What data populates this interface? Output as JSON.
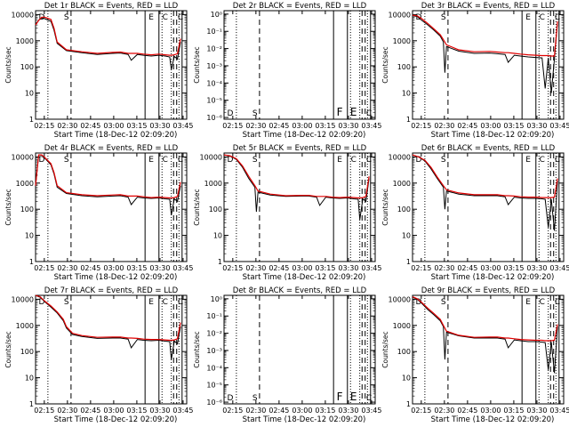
{
  "colors": {
    "events": "#000000",
    "lld": "#e00000",
    "axis": "#000000"
  },
  "chart_data": [
    {
      "type": "line",
      "title": "Det 1r BLACK = Events, RED = LLD",
      "xlabel": "Start Time (18-Dec-12 02:09:20)",
      "ylabel": "Counts/sec",
      "x_ticks": [
        "02:15",
        "02:30",
        "02:45",
        "03:00",
        "03:15",
        "03:30",
        "03:45"
      ],
      "y_ticks": [
        "1",
        "10",
        "100",
        "1000",
        "10000"
      ],
      "xlim_minutes": [
        0,
        98
      ],
      "ylim_decades": [
        0,
        4.15
      ],
      "y_scale": "log",
      "markers": [
        "D",
        "S",
        "E",
        "C",
        "C"
      ],
      "series": [
        {
          "name": "Events",
          "x": [
            0,
            2,
            4,
            6,
            10,
            12,
            14,
            20,
            30,
            40,
            50,
            55,
            60,
            62,
            66,
            70,
            75,
            80,
            84,
            87,
            88,
            90,
            92,
            94
          ],
          "y": [
            4000,
            6000,
            7500,
            7000,
            5500,
            2500,
            800,
            420,
            350,
            300,
            330,
            340,
            300,
            180,
            300,
            280,
            260,
            280,
            260,
            240,
            80,
            250,
            200,
            900
          ]
        },
        {
          "name": "LLD",
          "x": [
            0,
            2,
            4,
            6,
            10,
            12,
            14,
            20,
            30,
            40,
            50,
            55,
            60,
            62,
            66,
            70,
            75,
            80,
            84,
            87,
            88,
            90,
            92,
            94
          ],
          "y": [
            4000,
            6000,
            8000,
            8000,
            6500,
            3000,
            900,
            450,
            380,
            330,
            360,
            370,
            330,
            330,
            330,
            310,
            290,
            310,
            290,
            280,
            280,
            290,
            320,
            1200
          ]
        }
      ]
    },
    {
      "type": "line",
      "title": "Det 2r BLACK = Events, RED = LLD",
      "xlabel": "Start Time (18-Dec-12 02:09:20)",
      "ylabel": "Counts/sec",
      "x_ticks": [
        "02:15",
        "02:30",
        "02:45",
        "03:00",
        "03:15",
        "03:30",
        "03:45"
      ],
      "y_ticks": [
        "10⁻⁶",
        "10⁻⁵",
        "10⁻⁴",
        "10⁻³",
        "10⁻²",
        "10⁻¹",
        "10⁰"
      ],
      "xlim_minutes": [
        0,
        98
      ],
      "ylim_decades": [
        -6.1,
        0.2
      ],
      "y_scale": "log",
      "markers": [
        "D",
        "S",
        "F",
        "E",
        "C"
      ],
      "series": []
    },
    {
      "type": "line",
      "title": "Det 3r BLACK = Events, RED = LLD",
      "xlabel": "Start Time (18-Dec-12 02:09:20)",
      "ylabel": "Counts/sec",
      "x_ticks": [
        "02:15",
        "02:30",
        "02:45",
        "03:00",
        "03:15",
        "03:30",
        "03:45"
      ],
      "y_ticks": [
        "1",
        "10",
        "100",
        "1000",
        "10000"
      ],
      "xlim_minutes": [
        0,
        98
      ],
      "ylim_decades": [
        0,
        4.15
      ],
      "y_scale": "log",
      "markers": [
        "D",
        "S",
        "E",
        "C",
        "C"
      ],
      "series": [
        {
          "name": "Events",
          "x": [
            0,
            3,
            6,
            10,
            14,
            18,
            20,
            21,
            22,
            30,
            40,
            50,
            55,
            60,
            62,
            66,
            70,
            75,
            80,
            84,
            86,
            88,
            90,
            92,
            94
          ],
          "y": [
            9000,
            8500,
            6000,
            4000,
            2500,
            1500,
            900,
            60,
            600,
            400,
            330,
            340,
            320,
            300,
            150,
            280,
            260,
            240,
            230,
            220,
            15,
            220,
            10,
            200,
            5000
          ]
        },
        {
          "name": "LLD",
          "x": [
            0,
            3,
            6,
            10,
            14,
            18,
            20,
            22,
            30,
            40,
            50,
            55,
            60,
            62,
            66,
            70,
            75,
            80,
            84,
            86,
            88,
            90,
            92,
            94
          ],
          "y": [
            9500,
            9000,
            7000,
            4500,
            2800,
            1700,
            1100,
            700,
            450,
            380,
            390,
            370,
            350,
            350,
            330,
            310,
            290,
            280,
            270,
            270,
            270,
            260,
            260,
            5500
          ]
        }
      ]
    },
    {
      "type": "line",
      "title": "Det 4r BLACK = Events, RED = LLD",
      "xlabel": "Start Time (18-Dec-12 02:09:20)",
      "ylabel": "Counts/sec",
      "x_ticks": [
        "02:15",
        "02:30",
        "02:45",
        "03:00",
        "03:15",
        "03:30",
        "03:45"
      ],
      "y_ticks": [
        "1",
        "10",
        "100",
        "1000",
        "10000"
      ],
      "xlim_minutes": [
        0,
        98
      ],
      "ylim_decades": [
        0,
        4.15
      ],
      "y_scale": "log",
      "markers": [
        "D",
        "S",
        "E",
        "C",
        "C"
      ],
      "series": [
        {
          "name": "Events",
          "x": [
            0,
            2,
            4,
            6,
            10,
            12,
            14,
            20,
            30,
            40,
            50,
            55,
            60,
            62,
            66,
            70,
            75,
            80,
            84,
            87,
            88,
            90,
            92,
            94
          ],
          "y": [
            800,
            12000,
            12000,
            9000,
            5000,
            2200,
            700,
            400,
            330,
            300,
            320,
            330,
            290,
            150,
            290,
            270,
            260,
            270,
            250,
            240,
            60,
            250,
            200,
            800
          ]
        },
        {
          "name": "LLD",
          "x": [
            0,
            2,
            4,
            6,
            10,
            12,
            14,
            20,
            30,
            40,
            50,
            55,
            60,
            62,
            66,
            70,
            75,
            80,
            84,
            87,
            88,
            90,
            92,
            94
          ],
          "y": [
            800,
            12000,
            12000,
            9500,
            5500,
            2500,
            800,
            430,
            360,
            330,
            350,
            360,
            320,
            320,
            320,
            300,
            280,
            290,
            280,
            270,
            270,
            280,
            310,
            1100
          ]
        }
      ]
    },
    {
      "type": "line",
      "title": "Det 5r BLACK = Events, RED = LLD",
      "xlabel": "Start Time (18-Dec-12 02:09:20)",
      "ylabel": "Counts/sec",
      "x_ticks": [
        "02:15",
        "02:30",
        "02:45",
        "03:00",
        "03:15",
        "03:30",
        "03:45"
      ],
      "y_ticks": [
        "1",
        "10",
        "100",
        "1000",
        "10000"
      ],
      "xlim_minutes": [
        0,
        98
      ],
      "ylim_decades": [
        0,
        4.15
      ],
      "y_scale": "log",
      "markers": [
        "D",
        "S",
        "E",
        "C",
        "C"
      ],
      "series": [
        {
          "name": "Events",
          "x": [
            0,
            4,
            8,
            12,
            16,
            20,
            21,
            22,
            30,
            40,
            50,
            55,
            60,
            62,
            66,
            70,
            75,
            80,
            84,
            87,
            88,
            90,
            92,
            94
          ],
          "y": [
            12000,
            11000,
            8000,
            4000,
            1500,
            700,
            80,
            450,
            350,
            310,
            320,
            320,
            290,
            140,
            290,
            270,
            260,
            270,
            250,
            240,
            40,
            250,
            200,
            1500
          ]
        },
        {
          "name": "LLD",
          "x": [
            0,
            4,
            8,
            12,
            16,
            20,
            22,
            30,
            40,
            50,
            55,
            60,
            62,
            66,
            70,
            75,
            80,
            84,
            87,
            88,
            90,
            92,
            94
          ],
          "y": [
            12000,
            11000,
            8500,
            4500,
            1800,
            800,
            500,
            380,
            330,
            340,
            340,
            310,
            310,
            310,
            290,
            280,
            290,
            280,
            270,
            270,
            280,
            310,
            1800
          ]
        }
      ]
    },
    {
      "type": "line",
      "title": "Det 6r BLACK = Events, RED = LLD",
      "xlabel": "Start Time (18-Dec-12 02:09:20)",
      "ylabel": "Counts/sec",
      "x_ticks": [
        "02:15",
        "02:30",
        "02:45",
        "03:00",
        "03:15",
        "03:30",
        "03:45"
      ],
      "y_ticks": [
        "1",
        "10",
        "100",
        "1000",
        "10000"
      ],
      "xlim_minutes": [
        0,
        98
      ],
      "ylim_decades": [
        0,
        4.15
      ],
      "y_scale": "log",
      "markers": [
        "D",
        "S",
        "E",
        "C",
        "C"
      ],
      "series": [
        {
          "name": "Events",
          "x": [
            0,
            4,
            8,
            12,
            16,
            20,
            21,
            22,
            30,
            40,
            50,
            55,
            60,
            62,
            66,
            70,
            75,
            80,
            84,
            86,
            88,
            90,
            92,
            94
          ],
          "y": [
            12000,
            10000,
            7000,
            3500,
            1500,
            700,
            100,
            500,
            380,
            330,
            330,
            330,
            300,
            150,
            290,
            270,
            260,
            260,
            250,
            240,
            20,
            240,
            15,
            1200
          ]
        },
        {
          "name": "LLD",
          "x": [
            0,
            4,
            8,
            12,
            16,
            20,
            22,
            30,
            40,
            50,
            55,
            60,
            62,
            66,
            70,
            75,
            80,
            84,
            86,
            88,
            90,
            92,
            94
          ],
          "y": [
            12000,
            10000,
            7500,
            4000,
            1700,
            800,
            550,
            420,
            360,
            360,
            360,
            330,
            330,
            320,
            300,
            290,
            290,
            280,
            280,
            280,
            280,
            290,
            1500
          ]
        }
      ]
    },
    {
      "type": "line",
      "title": "Det 7r BLACK = Events, RED = LLD",
      "xlabel": "Start Time (18-Dec-12 02:09:20)",
      "ylabel": "Counts/sec",
      "x_ticks": [
        "02:15",
        "02:30",
        "02:45",
        "03:00",
        "03:15",
        "03:30",
        "03:45"
      ],
      "y_ticks": [
        "1",
        "10",
        "100",
        "1000",
        "10000"
      ],
      "xlim_minutes": [
        0,
        98
      ],
      "ylim_decades": [
        0,
        4.15
      ],
      "y_scale": "log",
      "markers": [
        "D",
        "S",
        "E",
        "C",
        "C"
      ],
      "series": [
        {
          "name": "Events",
          "x": [
            0,
            3,
            6,
            10,
            14,
            18,
            20,
            24,
            30,
            40,
            50,
            55,
            60,
            62,
            66,
            70,
            75,
            80,
            84,
            87,
            88,
            90,
            92,
            94
          ],
          "y": [
            14000,
            12000,
            8000,
            5000,
            3000,
            1500,
            800,
            450,
            380,
            320,
            330,
            330,
            300,
            140,
            290,
            270,
            260,
            270,
            250,
            240,
            50,
            250,
            200,
            900
          ]
        },
        {
          "name": "LLD",
          "x": [
            0,
            3,
            6,
            10,
            14,
            18,
            20,
            24,
            30,
            40,
            50,
            55,
            60,
            62,
            66,
            70,
            75,
            80,
            84,
            87,
            88,
            90,
            92,
            94
          ],
          "y": [
            14000,
            12500,
            8500,
            5500,
            3300,
            1700,
            900,
            500,
            410,
            350,
            360,
            360,
            330,
            330,
            320,
            300,
            290,
            290,
            280,
            270,
            270,
            280,
            310,
            1300
          ]
        }
      ]
    },
    {
      "type": "line",
      "title": "Det 8r BLACK = Events, RED = LLD",
      "xlabel": "Start Time (18-Dec-12 02:09:20)",
      "ylabel": "Counts/sec",
      "x_ticks": [
        "02:15",
        "02:30",
        "02:45",
        "03:00",
        "03:15",
        "03:30",
        "03:45"
      ],
      "y_ticks": [
        "10⁻⁶",
        "10⁻⁵",
        "10⁻⁴",
        "10⁻³",
        "10⁻²",
        "10⁻¹",
        "10⁰"
      ],
      "xlim_minutes": [
        0,
        98
      ],
      "ylim_decades": [
        -6.1,
        0.2
      ],
      "y_scale": "log",
      "markers": [
        "D",
        "S",
        "F",
        "E",
        "C"
      ],
      "series": []
    },
    {
      "type": "line",
      "title": "Det 9r BLACK = Events, RED = LLD",
      "xlabel": "Start Time (18-Dec-12 02:09:20)",
      "ylabel": "Counts/sec",
      "x_ticks": [
        "02:15",
        "02:30",
        "02:45",
        "03:00",
        "03:15",
        "03:30",
        "03:45"
      ],
      "y_ticks": [
        "1",
        "10",
        "100",
        "1000",
        "10000"
      ],
      "xlim_minutes": [
        0,
        98
      ],
      "ylim_decades": [
        0,
        4.15
      ],
      "y_scale": "log",
      "markers": [
        "D",
        "S",
        "E",
        "C",
        "C"
      ],
      "series": [
        {
          "name": "Events",
          "x": [
            0,
            3,
            6,
            10,
            14,
            18,
            20,
            21,
            22,
            30,
            40,
            50,
            55,
            60,
            62,
            66,
            70,
            75,
            80,
            84,
            86,
            88,
            90,
            92,
            94
          ],
          "y": [
            12000,
            10000,
            7000,
            4000,
            2500,
            1500,
            900,
            50,
            550,
            400,
            330,
            330,
            330,
            300,
            140,
            280,
            260,
            240,
            240,
            230,
            220,
            20,
            230,
            15,
            900
          ]
        },
        {
          "name": "LLD",
          "x": [
            0,
            3,
            6,
            10,
            14,
            18,
            20,
            22,
            30,
            40,
            50,
            55,
            60,
            62,
            66,
            70,
            75,
            80,
            84,
            86,
            88,
            90,
            92,
            94
          ],
          "y": [
            12500,
            10500,
            7500,
            4500,
            2800,
            1700,
            1000,
            600,
            420,
            350,
            360,
            360,
            330,
            330,
            310,
            290,
            280,
            270,
            270,
            260,
            260,
            260,
            270,
            1100
          ]
        }
      ]
    }
  ]
}
